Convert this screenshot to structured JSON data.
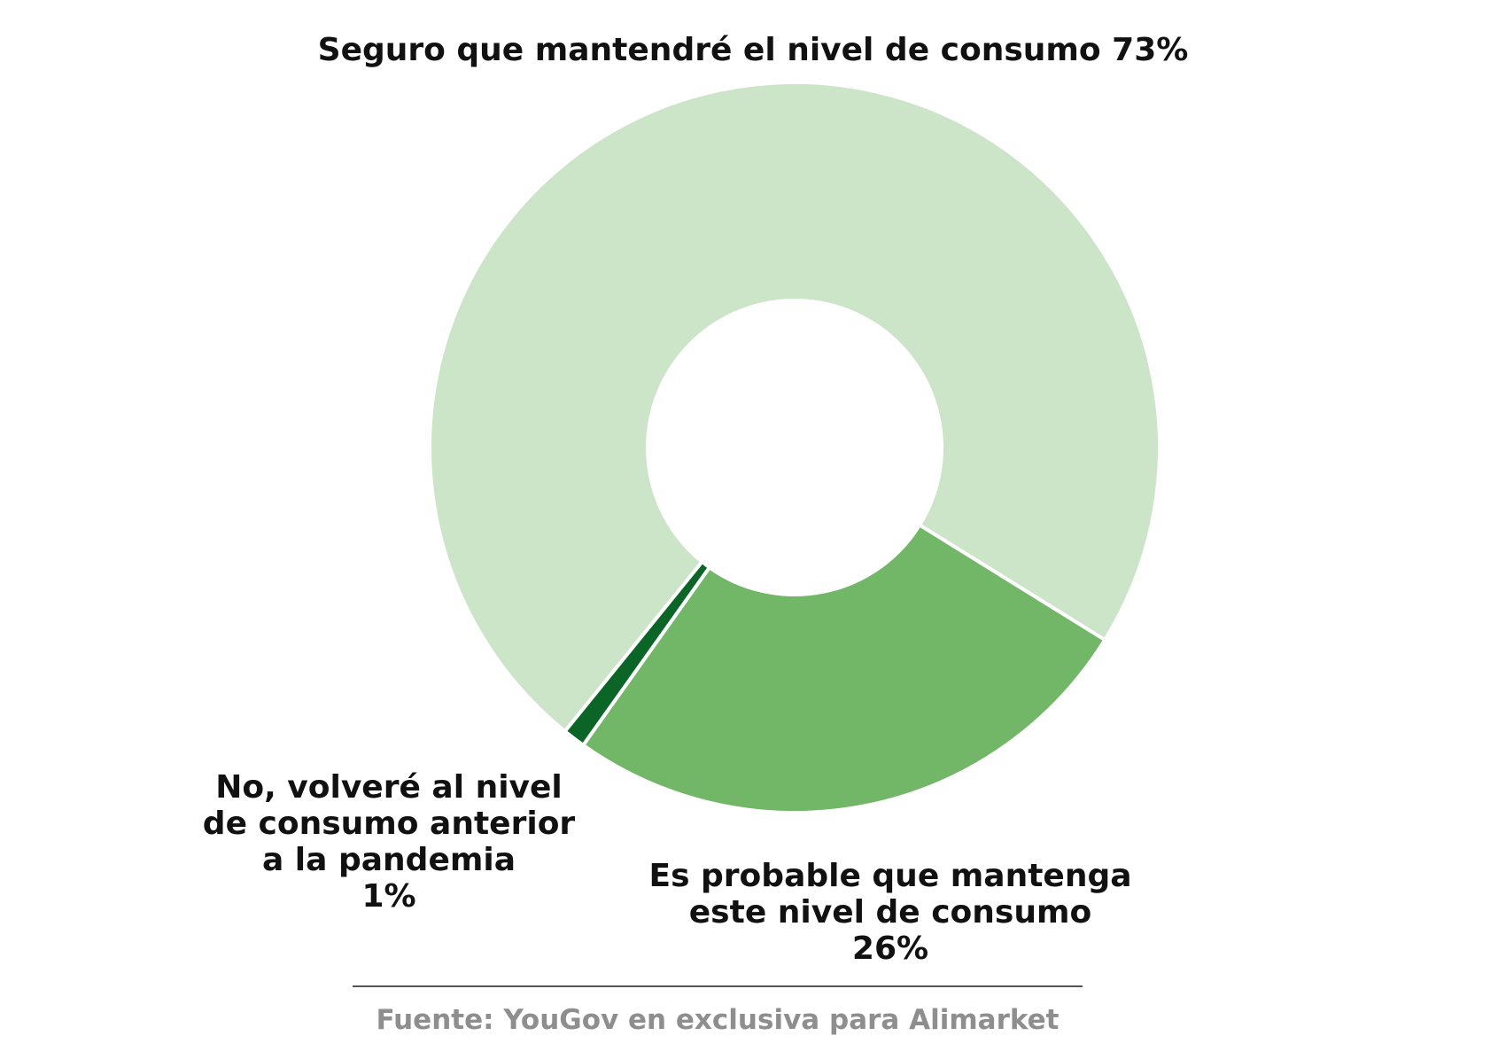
{
  "chart_data": {
    "type": "pie",
    "variant": "donut",
    "slices": [
      {
        "label_lines": [
          "Seguro que mantendré el nivel de consumo 73%"
        ],
        "value": 73,
        "color": "#cce5c8"
      },
      {
        "label_lines": [
          "Es probable que mantenga",
          "este nivel de consumo",
          "26%"
        ],
        "value": 26,
        "color": "#72b667"
      },
      {
        "label_lines": [
          "No, volveré al nivel",
          "de consumo anterior",
          "a la pandemia",
          "1%"
        ],
        "value": 1,
        "color": "#0b6527"
      }
    ]
  },
  "source": "Fuente: YouGov en exclusiva para Alimarket"
}
